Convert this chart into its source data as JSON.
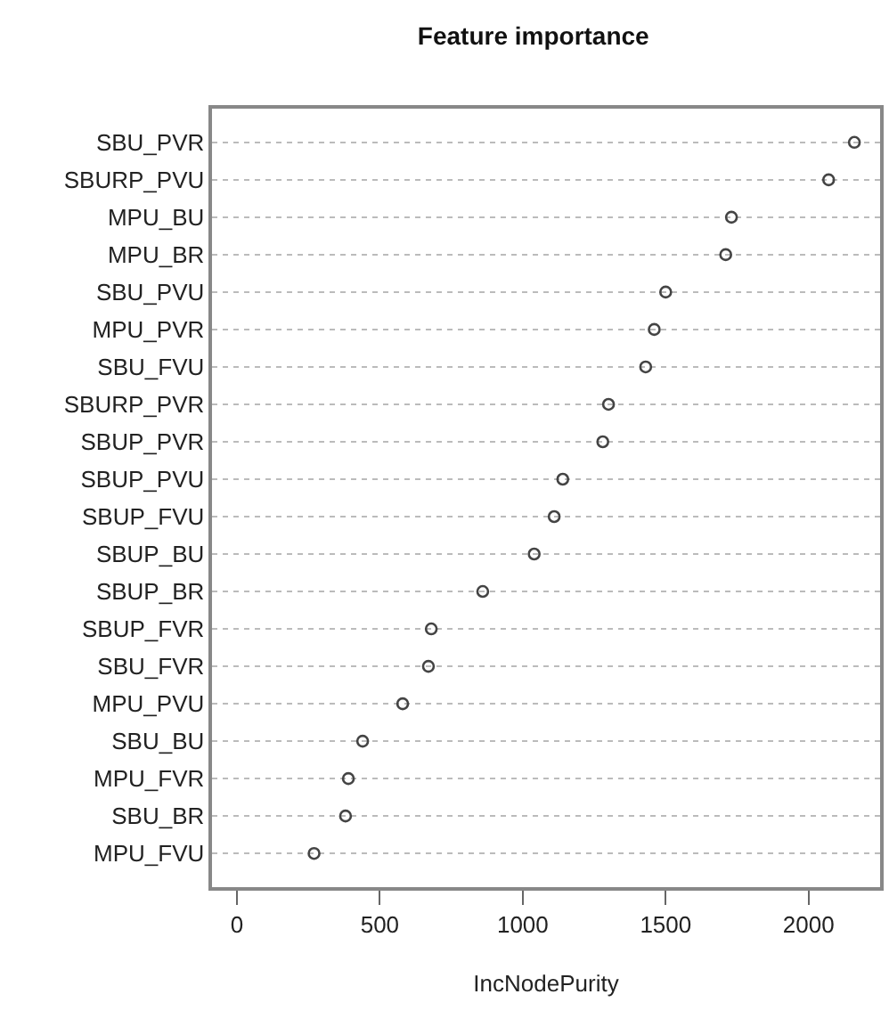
{
  "chart_data": {
    "type": "scatter",
    "orientation": "horizontal",
    "title": "Feature importance",
    "xlabel": "IncNodePurity",
    "categories": [
      "SBU_PVR",
      "SBURP_PVU",
      "MPU_BU",
      "MPU_BR",
      "SBU_PVU",
      "MPU_PVR",
      "SBU_FVU",
      "SBURP_PVR",
      "SBUP_PVR",
      "SBUP_PVU",
      "SBUP_FVU",
      "SBUP_BU",
      "SBUP_BR",
      "SBUP_FVR",
      "SBU_FVR",
      "MPU_PVU",
      "SBU_BU",
      "MPU_FVR",
      "SBU_BR",
      "MPU_FVU"
    ],
    "series": [
      {
        "color": "#444444",
        "values": [
          2160,
          2070,
          1730,
          1710,
          1500,
          1460,
          1430,
          1300,
          1280,
          1140,
          1110,
          1040,
          860,
          680,
          670,
          580,
          440,
          390,
          380,
          270
        ]
      }
    ],
    "xlim": [
      -87,
      2250
    ],
    "xticks": [
      0,
      500,
      1000,
      1500,
      2000
    ],
    "grid": "y",
    "marker": "circle"
  }
}
